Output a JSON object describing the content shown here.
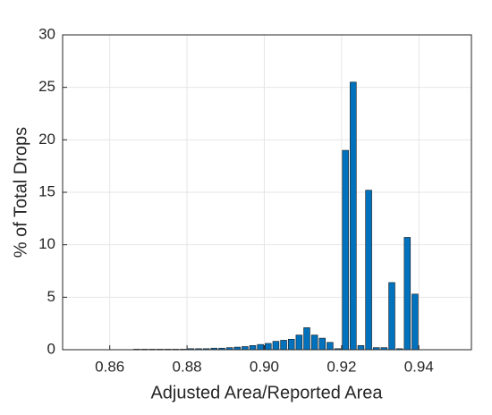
{
  "chart_data": {
    "type": "bar",
    "x_label": "Adjusted Area/Reported Area",
    "y_label": "% of Total Drops",
    "x": [
      0.867,
      0.869,
      0.871,
      0.873,
      0.875,
      0.877,
      0.879,
      0.881,
      0.883,
      0.885,
      0.887,
      0.889,
      0.891,
      0.893,
      0.895,
      0.897,
      0.899,
      0.901,
      0.903,
      0.905,
      0.907,
      0.909,
      0.911,
      0.913,
      0.915,
      0.917,
      0.919,
      0.921,
      0.923,
      0.925,
      0.927,
      0.929,
      0.931,
      0.933,
      0.935,
      0.937,
      0.939
    ],
    "values": [
      0.05,
      0.05,
      0.05,
      0.05,
      0.05,
      0.05,
      0.05,
      0.1,
      0.1,
      0.1,
      0.15,
      0.15,
      0.2,
      0.25,
      0.3,
      0.4,
      0.5,
      0.6,
      0.8,
      0.9,
      1.0,
      1.4,
      2.1,
      1.4,
      1.1,
      0.7,
      0.1,
      19,
      25.5,
      0.4,
      15.2,
      0.2,
      0.2,
      6.4,
      0.1,
      10.7,
      5.3
    ],
    "color": "#0072bd",
    "xlim": [
      0.8478,
      0.9536
    ],
    "xticks": [
      {
        "value": 0.86,
        "label": "0.86"
      },
      {
        "value": 0.88,
        "label": "0.88"
      },
      {
        "value": 0.9,
        "label": "0.90"
      },
      {
        "value": 0.92,
        "label": "0.92"
      },
      {
        "value": 0.94,
        "label": "0.94"
      }
    ],
    "ylim": [
      0,
      30
    ],
    "yticks": [
      0,
      5,
      10,
      15,
      20,
      25,
      30
    ],
    "grid": true
  }
}
